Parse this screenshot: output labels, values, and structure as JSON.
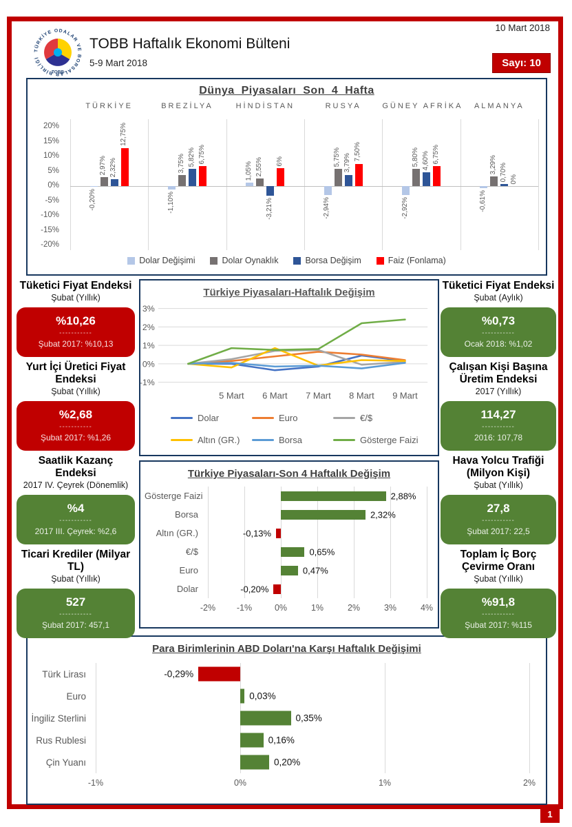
{
  "header": {
    "date": "10 Mart 2018",
    "title": "TOBB Haftalık Ekonomi Bülteni",
    "subtitle": "5-9 Mart 2018",
    "issue": "Sayı: 10",
    "logo_ring": "TÜRKİYE ODALAR VE BORSALAR BİRLİĞİ",
    "logo_text": "TOBB",
    "page_number": "1"
  },
  "palette": {
    "accent_red": "#c00000",
    "card_green": "#548235",
    "border_navy": "#17375e"
  },
  "card_dashes": "-----------",
  "left_cards": [
    {
      "title": "Tüketici Fiyat Endeksi",
      "subtitle": "Şubat (Yıllık)",
      "value": "%10,26",
      "previous": "Şubat 2017: %10,13",
      "tone": "red"
    },
    {
      "title": "Yurt İçi Üretici Fiyat Endeksi",
      "subtitle": "Şubat (Yıllık)",
      "value": "%2,68",
      "previous": "Şubat 2017: %1,26",
      "tone": "red"
    },
    {
      "title": "Saatlik Kazanç Endeksi",
      "subtitle": "2017 IV. Çeyrek (Dönemlik)",
      "value": "%4",
      "previous": "2017 III. Çeyrek: %2,6",
      "tone": "green"
    },
    {
      "title": "Ticari Krediler (Milyar TL)",
      "subtitle": "Şubat (Yıllık)",
      "value": "527",
      "previous": "Şubat 2017: 457,1",
      "tone": "green"
    }
  ],
  "right_cards": [
    {
      "title": "Tüketici Fiyat Endeksi",
      "subtitle": "Şubat (Aylık)",
      "value": "%0,73",
      "previous": "Ocak 2018: %1,02",
      "tone": "green"
    },
    {
      "title": "Çalışan Kişi Başına Üretim Endeksi",
      "subtitle": "2017 (Yıllık)",
      "value": "114,27",
      "previous": "2016: 107,78",
      "tone": "green"
    },
    {
      "title": "Hava Yolcu Trafiği (Milyon Kişi)",
      "subtitle": "Şubat (Yıllık)",
      "value": "27,8",
      "previous": "Şubat 2017: 22,5",
      "tone": "green"
    },
    {
      "title": "Toplam İç Borç Çevirme Oranı",
      "subtitle": "Şubat (Yıllık)",
      "value": "%91,8",
      "previous": "Şubat 2017: %115",
      "tone": "green"
    }
  ],
  "chart_data": [
    {
      "name": "world_markets",
      "type": "bar",
      "title": "Dünya Piyasaları Son 4 Hafta",
      "categories": [
        "TÜRKİYE",
        "BREZİLYA",
        "HİNDİSTAN",
        "RUSYA",
        "GÜNEY AFRİKA",
        "ALMANYA"
      ],
      "series": [
        {
          "name": "Dolar Değişimi",
          "color": "#b4c7e7",
          "values": [
            -0.2,
            -1.1,
            1.05,
            -2.94,
            -2.92,
            -0.61
          ],
          "labels": [
            "-0,20%",
            "-1,10%",
            "1,05%",
            "-2,94%",
            "-2,92%",
            "-0,61%"
          ]
        },
        {
          "name": "Dolar Oynaklık",
          "color": "#767171",
          "values": [
            2.97,
            3.75,
            2.55,
            5.75,
            5.8,
            3.29
          ],
          "labels": [
            "2,97%",
            "3,75%",
            "2,55%",
            "5,75%",
            "5,80%",
            "3,29%"
          ]
        },
        {
          "name": "Borsa Değişim",
          "color": "#2e5597",
          "values": [
            2.32,
            5.82,
            -3.21,
            3.79,
            4.6,
            0.7
          ],
          "labels": [
            "2,32%",
            "5,82%",
            "-3,21%",
            "3,79%",
            "4,60%",
            "0,70%"
          ]
        },
        {
          "name": "Faiz (Fonlama)",
          "color": "#ff0000",
          "values": [
            12.75,
            6.75,
            6.0,
            7.5,
            6.75,
            0
          ],
          "labels": [
            "12,75%",
            "6,75%",
            "6%",
            "7,50%",
            "6,75%",
            "0%"
          ]
        }
      ],
      "ylim": [
        -20,
        20
      ],
      "yticks": [
        "20%",
        "15%",
        "10%",
        "5%",
        "0%",
        "-5%",
        "-10%",
        "-15%",
        "-20%"
      ],
      "legend_position": "bottom"
    },
    {
      "name": "turkey_weekly",
      "type": "line",
      "title": "Türkiye Piyasaları-Haftalık Değişim",
      "x_labels": [
        "",
        "5 Mart",
        "6 Mart",
        "7 Mart",
        "8 Mart",
        "9 Mart"
      ],
      "series": [
        {
          "name": "Dolar",
          "color": "#4472c4",
          "values": [
            0,
            0.0,
            -0.35,
            -0.15,
            0.45,
            0.15
          ]
        },
        {
          "name": "Euro",
          "color": "#ed7d31",
          "values": [
            0,
            0.15,
            0.4,
            0.65,
            0.5,
            0.2
          ]
        },
        {
          "name": "€/$",
          "color": "#a5a5a5",
          "values": [
            0,
            0.25,
            0.7,
            0.75,
            -0.05,
            0.1
          ]
        },
        {
          "name": "Altın (GR.)",
          "color": "#ffc000",
          "values": [
            0,
            -0.2,
            0.85,
            -0.1,
            0.2,
            0.15
          ]
        },
        {
          "name": "Borsa",
          "color": "#5b9bd5",
          "values": [
            0,
            0.05,
            -0.15,
            -0.1,
            -0.25,
            0.05
          ]
        },
        {
          "name": "Gösterge Faizi",
          "color": "#70ad47",
          "values": [
            0,
            0.85,
            0.75,
            0.8,
            2.2,
            2.4
          ]
        }
      ],
      "ylim": [
        -1,
        3
      ],
      "yticks": [
        "3%",
        "2%",
        "1%",
        "0%",
        "-1%"
      ],
      "legend_position": "bottom"
    },
    {
      "name": "turkey_4week",
      "type": "bar",
      "orientation": "horizontal",
      "title": "Türkiye Piyasaları-Son 4 Haftalık Değişim",
      "categories": [
        "Gösterge Faizi",
        "Borsa",
        "Altın (GR.)",
        "€/$",
        "Euro",
        "Dolar"
      ],
      "values": [
        2.88,
        2.32,
        -0.13,
        0.65,
        0.47,
        -0.2
      ],
      "labels": [
        "2,88%",
        "2,32%",
        "-0,13%",
        "0,65%",
        "0,47%",
        "-0,20%"
      ],
      "xlim": [
        -2,
        4
      ],
      "xticks": [
        "-2%",
        "-1%",
        "0%",
        "1%",
        "2%",
        "3%",
        "4%"
      ],
      "positive_color": "#548235",
      "negative_color": "#c00000"
    },
    {
      "name": "currencies_vs_usd",
      "type": "bar",
      "orientation": "horizontal",
      "title": "Para Birimlerinin ABD Doları'na Karşı Haftalık Değişimi",
      "categories": [
        "Türk Lirası",
        "Euro",
        "İngiliz Sterlini",
        "Rus Rublesi",
        "Çin Yuanı"
      ],
      "values": [
        -0.29,
        0.03,
        0.35,
        0.16,
        0.2
      ],
      "labels": [
        "-0,29%",
        "0,03%",
        "0,35%",
        "0,16%",
        "0,20%"
      ],
      "xlim": [
        -1,
        2
      ],
      "xticks": [
        "-1%",
        "0%",
        "1%",
        "2%"
      ],
      "positive_color": "#548235",
      "negative_color": "#c00000"
    }
  ]
}
